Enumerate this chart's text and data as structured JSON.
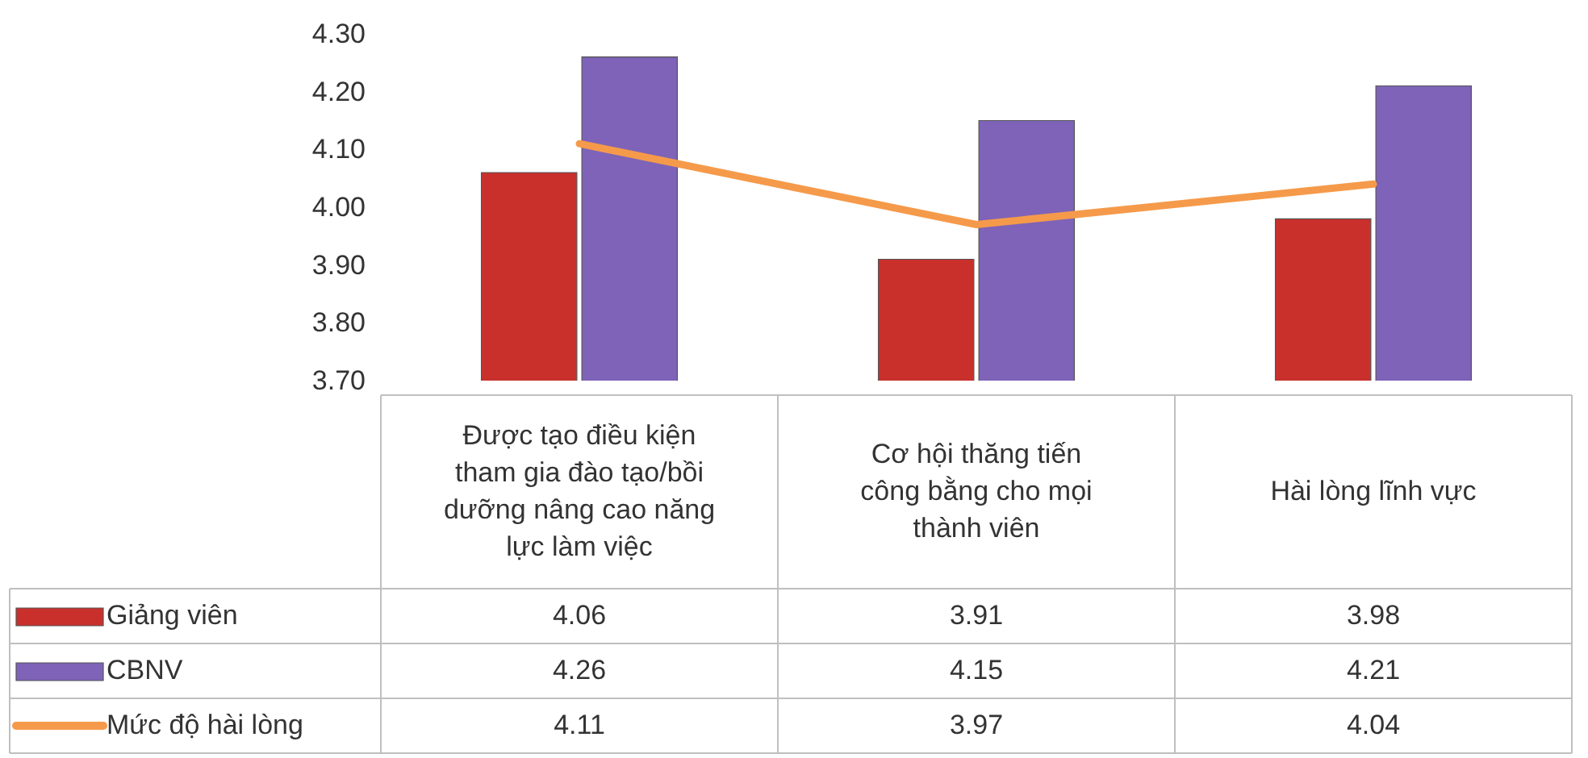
{
  "chart_data": {
    "type": "bar",
    "categories": [
      "Được tạo điều kiện tham gia đào tạo/bồi dưỡng nâng cao năng lực làm việc",
      "Cơ hội thăng tiến công bằng cho mọi thành viên",
      "Hài lòng lĩnh vực"
    ],
    "series": [
      {
        "name": "Giảng viên",
        "color": "#c9302c",
        "values": [
          4.06,
          3.91,
          3.98
        ]
      },
      {
        "name": "CBNV",
        "color": "#7e63b8",
        "values": [
          4.26,
          4.15,
          4.21
        ]
      },
      {
        "name": "Mức độ hài lòng",
        "type": "line",
        "color": "#f59a4a",
        "values": [
          4.11,
          3.97,
          4.04
        ]
      }
    ],
    "ylim": [
      3.7,
      4.3
    ],
    "yticks": [
      {
        "value": 3.7,
        "label": "3.70"
      },
      {
        "value": 3.8,
        "label": "3.80"
      },
      {
        "value": 3.9,
        "label": "3.90"
      },
      {
        "value": 4.0,
        "label": "4.00"
      },
      {
        "value": 4.1,
        "label": "4.10"
      },
      {
        "value": 4.2,
        "label": "4.20"
      },
      {
        "value": 4.3,
        "label": "4.30"
      }
    ],
    "data_labels": true,
    "legend": "bottom",
    "grid": false,
    "marker": "none",
    "line_style": "solid"
  }
}
